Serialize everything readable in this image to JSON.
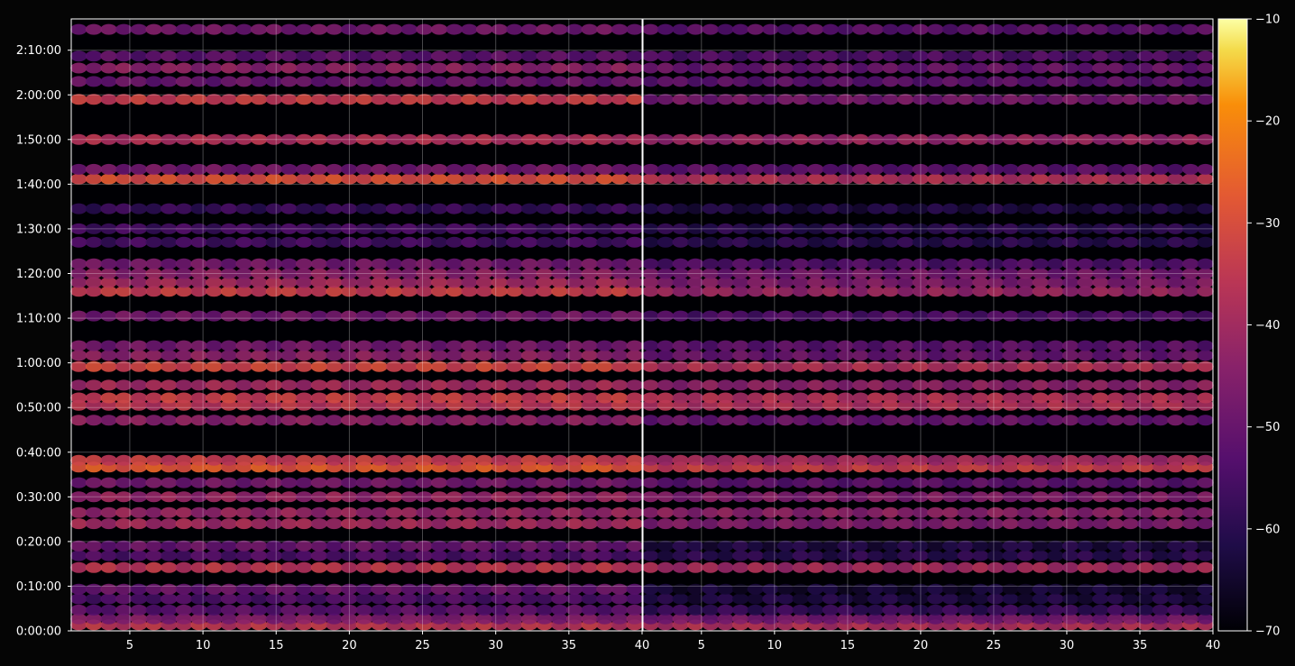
{
  "chart_data": {
    "type": "heatmap",
    "title": "",
    "xlabel": "",
    "ylabel": "",
    "background": "#050505",
    "colormap": "inferno",
    "panels": [
      {
        "name": "",
        "xlim": [
          1,
          40
        ],
        "x_ticks": [
          5,
          10,
          15,
          20,
          25,
          30,
          35,
          40
        ],
        "x_tick_labels": [
          "5",
          "10",
          "15",
          "20",
          "25",
          "30",
          "35",
          "40"
        ]
      },
      {
        "name": "",
        "xlim": [
          1,
          40
        ],
        "x_ticks": [
          5,
          10,
          15,
          20,
          25,
          30,
          35,
          40
        ],
        "x_tick_labels": [
          "5",
          "10",
          "15",
          "20",
          "25",
          "30",
          "35",
          "40"
        ]
      }
    ],
    "ylim_seconds": [
      0,
      8220
    ],
    "y_ticks_seconds": [
      0,
      600,
      1200,
      1800,
      2400,
      3000,
      3600,
      4200,
      4800,
      5400,
      6000,
      6600,
      7200,
      7800
    ],
    "y_tick_labels": [
      "0:00:00",
      "0:10:00",
      "0:20:00",
      "0:30:00",
      "0:40:00",
      "0:50:00",
      "1:00:00",
      "1:10:00",
      "1:20:00",
      "1:30:00",
      "1:40:00",
      "1:50:00",
      "2:00:00",
      "2:10:00"
    ],
    "colorbar": {
      "range": [
        -70,
        -10
      ],
      "ticks": [
        -70,
        -60,
        -50,
        -40,
        -30,
        -20,
        -10
      ],
      "tick_labels": [
        "−70",
        "−60",
        "−50",
        "−40",
        "−30",
        "−20",
        "−10"
      ]
    },
    "grid": true,
    "bands": [
      {
        "t": 80,
        "left": -36,
        "right": -38
      },
      {
        "t": 160,
        "left": -46,
        "right": -48
      },
      {
        "t": 280,
        "left": -52,
        "right": -58
      },
      {
        "t": 430,
        "left": -54,
        "right": -62
      },
      {
        "t": 560,
        "left": -50,
        "right": -64
      },
      {
        "t": 850,
        "left": -36,
        "right": -40
      },
      {
        "t": 1010,
        "left": -54,
        "right": -60
      },
      {
        "t": 1140,
        "left": -50,
        "right": -62
      },
      {
        "t": 1440,
        "left": -40,
        "right": -46
      },
      {
        "t": 1590,
        "left": -42,
        "right": -44
      },
      {
        "t": 1800,
        "left": -42,
        "right": -46
      },
      {
        "t": 1990,
        "left": -48,
        "right": -52
      },
      {
        "t": 2200,
        "left": -28,
        "right": -34
      },
      {
        "t": 2290,
        "left": -34,
        "right": -40
      },
      {
        "t": 2830,
        "left": -44,
        "right": -50
      },
      {
        "t": 3030,
        "left": -36,
        "right": -38
      },
      {
        "t": 3130,
        "left": -34,
        "right": -38
      },
      {
        "t": 3300,
        "left": -40,
        "right": -44
      },
      {
        "t": 3550,
        "left": -32,
        "right": -38
      },
      {
        "t": 3700,
        "left": -44,
        "right": -50
      },
      {
        "t": 3830,
        "left": -48,
        "right": -52
      },
      {
        "t": 4230,
        "left": -48,
        "right": -54
      },
      {
        "t": 4560,
        "left": -34,
        "right": -42
      },
      {
        "t": 4680,
        "left": -40,
        "right": -46
      },
      {
        "t": 4800,
        "left": -44,
        "right": -48
      },
      {
        "t": 4930,
        "left": -48,
        "right": -54
      },
      {
        "t": 5220,
        "left": -56,
        "right": -60
      },
      {
        "t": 5400,
        "left": -56,
        "right": -60
      },
      {
        "t": 5670,
        "left": -58,
        "right": -62
      },
      {
        "t": 6070,
        "left": -30,
        "right": -38
      },
      {
        "t": 6200,
        "left": -48,
        "right": -52
      },
      {
        "t": 6600,
        "left": -38,
        "right": -42
      },
      {
        "t": 7140,
        "left": -34,
        "right": -48
      },
      {
        "t": 7380,
        "left": -50,
        "right": -52
      },
      {
        "t": 7560,
        "left": -44,
        "right": -50
      },
      {
        "t": 7720,
        "left": -52,
        "right": -54
      },
      {
        "t": 8080,
        "left": -48,
        "right": -52
      }
    ]
  }
}
